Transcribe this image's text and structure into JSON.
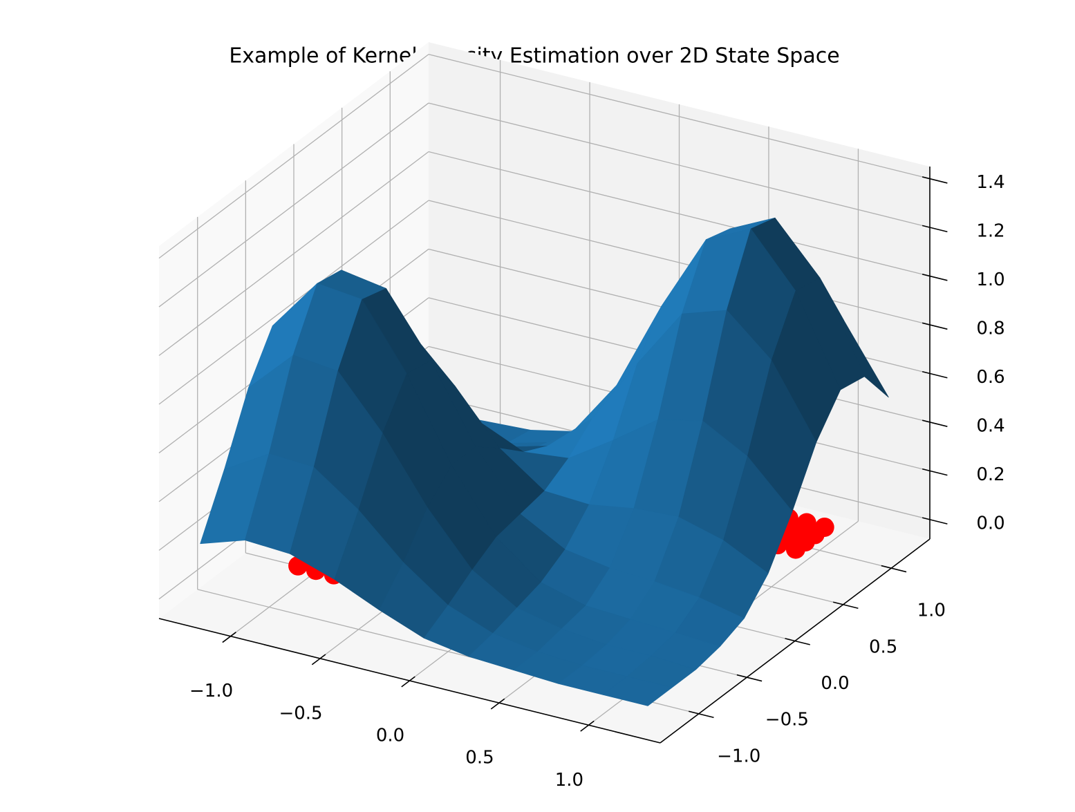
{
  "chart_data": {
    "type": "surface3d",
    "title": "Example of Kernel Density Estimation over 2D State Space",
    "x": [
      -1.25,
      -1,
      -0.75,
      -0.5,
      -0.25,
      0,
      0.25,
      0.5,
      0.75,
      1,
      1.25
    ],
    "y": [
      -1.25,
      -1,
      -0.75,
      -0.5,
      -0.25,
      0,
      0.25,
      0.5,
      0.75,
      1,
      1.25
    ],
    "z": [
      [
        0.21,
        0.27,
        0.26,
        0.2,
        0.12,
        0.05,
        0.02,
        0.01,
        0,
        0,
        0
      ],
      [
        0.44,
        0.55,
        0.54,
        0.41,
        0.24,
        0.11,
        0.04,
        0.01,
        0,
        0,
        0
      ],
      [
        0.7,
        0.88,
        0.86,
        0.65,
        0.39,
        0.18,
        0.07,
        0.03,
        0.01,
        0.01,
        0
      ],
      [
        0.88,
        1.1,
        1.08,
        0.82,
        0.49,
        0.24,
        0.1,
        0.05,
        0.04,
        0.03,
        0.02
      ],
      [
        0.86,
        1.08,
        1.05,
        0.8,
        0.49,
        0.26,
        0.16,
        0.13,
        0.12,
        0.1,
        0.06
      ],
      [
        0.65,
        0.82,
        0.8,
        0.62,
        0.41,
        0.28,
        0.27,
        0.3,
        0.31,
        0.26,
        0.17
      ],
      [
        0.39,
        0.49,
        0.48,
        0.4,
        0.32,
        0.34,
        0.46,
        0.59,
        0.63,
        0.53,
        0.35
      ],
      [
        0.18,
        0.23,
        0.23,
        0.22,
        0.27,
        0.43,
        0.7,
        0.95,
        1.01,
        0.85,
        0.56
      ],
      [
        0.07,
        0.08,
        0.1,
        0.13,
        0.25,
        0.49,
        0.86,
        1.18,
        1.27,
        1.06,
        0.7
      ],
      [
        0.02,
        0.03,
        0.04,
        0.09,
        0.22,
        0.47,
        0.83,
        1.15,
        1.24,
        1.04,
        0.68
      ],
      [
        0,
        0.01,
        0.02,
        0.06,
        0.16,
        0.36,
        0.63,
        0.87,
        0.94,
        0.79,
        0.52
      ]
    ],
    "color": "#1f77b4",
    "scatter": {
      "x": [
        -1,
        -0.9,
        -0.8,
        -0.7,
        -1,
        -0.9,
        -0.8,
        -0.7,
        -1,
        -0.9,
        -0.8,
        -0.7,
        -1,
        -0.9,
        -0.8,
        -0.7,
        0.7,
        0.8,
        0.9,
        1,
        0.7,
        0.8,
        0.9,
        1,
        0.7,
        0.8,
        0.9,
        1,
        0.7,
        0.8,
        0.9,
        1
      ],
      "y": [
        -0.7,
        -0.7,
        -0.7,
        -0.7,
        -0.6,
        -0.6,
        -0.6,
        -0.6,
        -0.5,
        -0.5,
        -0.5,
        -0.5,
        -0.4,
        -0.4,
        -0.4,
        -0.4,
        0.75,
        0.75,
        0.75,
        0.75,
        0.85,
        0.85,
        0.85,
        0.85,
        0.95,
        0.95,
        0.95,
        0.95,
        1.05,
        1.05,
        1.05,
        1.05
      ],
      "z": 0,
      "color": "#ff0000"
    },
    "xlim": [
      -1.4,
      1.4
    ],
    "ylim": [
      -1.4,
      1.4
    ],
    "zlim": [
      -0.08,
      1.45
    ],
    "xticks": [
      {
        "value": -1,
        "label": "−1.0"
      },
      {
        "value": -0.5,
        "label": "−0.5"
      },
      {
        "value": 0,
        "label": "0.0"
      },
      0.5,
      {
        "value": 1,
        "label": "1.0"
      }
    ],
    "yticks": [
      {
        "value": -1,
        "label": "−1.0"
      },
      {
        "value": -0.5,
        "label": "−0.5"
      },
      {
        "value": 0,
        "label": "0.0"
      },
      0.5,
      {
        "value": 1,
        "label": "1.0"
      }
    ],
    "zticks": [
      {
        "value": 0,
        "label": "0.0"
      },
      0.2,
      0.4,
      0.6,
      0.8,
      {
        "value": 1,
        "label": "1.0"
      },
      1.2,
      1.4
    ],
    "grid": true
  }
}
